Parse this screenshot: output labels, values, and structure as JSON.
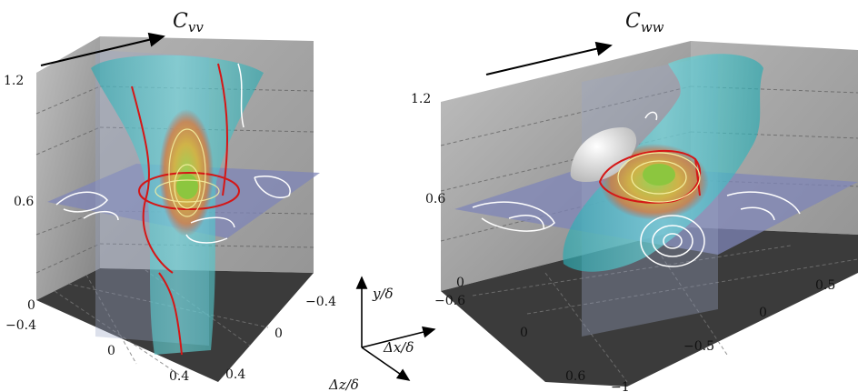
{
  "left_panel": {
    "title": "C",
    "title_sub": "vv",
    "y_ticks": [
      "1.2",
      "0.6",
      "0"
    ],
    "x_ticks": [
      "−0.4",
      "0",
      "0.4"
    ],
    "z_ticks": [
      "−0.4",
      "0",
      "0.4"
    ]
  },
  "right_panel": {
    "title": "C",
    "title_sub": "ww",
    "y_ticks": [
      "1.2",
      "0.6",
      "0"
    ],
    "z_ticks": [
      "−0.6",
      "0",
      "0.6"
    ],
    "x_ticks": [
      "−1",
      "−0.5",
      "0",
      "0.5"
    ]
  },
  "axes_legend": {
    "y_label": "y/δ",
    "x_label": "Δx/δ",
    "z_label": "Δz/δ"
  },
  "colors": {
    "floor": "#3b3b3b",
    "back_wall": "#8f8f8f",
    "plane": "#7f86b8",
    "isosurface_cyan": "#52c9cc",
    "isosurface_white": "#e8e8e8",
    "contour_red": "#d51616",
    "contour_white": "#ffffff",
    "core_green": "#8cc63f",
    "core_orange": "#e8a23a"
  }
}
